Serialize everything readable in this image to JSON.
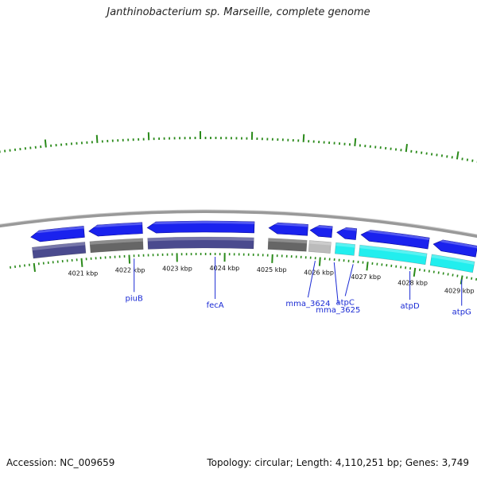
{
  "title": "Janthinobacterium sp. Marseille, complete genome",
  "footer": {
    "accession": "Accession: NC_009659",
    "stats": "Topology: circular; Length: 4,110,251 bp; Genes: 3,749"
  },
  "colors": {
    "backbone": "#999999",
    "outer_cds": "#1a22ee",
    "inner_cds": "#4a4a8e",
    "inner_gray": "#666666",
    "inner_lightgray": "#bbbbbb",
    "inner_cyan": "#22eeee",
    "tick": "#2a8a1a",
    "label": "#1a2ad4"
  },
  "scale": {
    "unit": "kbp",
    "labeled_ticks_kbp": [
      4021,
      4022,
      4023,
      4024,
      4025,
      4026,
      4027,
      4028,
      4029
    ]
  },
  "genes": [
    {
      "name": "piuB",
      "anchor_kbp": 4022.1
    },
    {
      "name": "fecA",
      "anchor_kbp": 4023.8
    },
    {
      "name": "mma_3624",
      "anchor_kbp": 4025.9
    },
    {
      "name": "mma_3625",
      "anchor_kbp": 4026.3
    },
    {
      "name": "atpC",
      "anchor_kbp": 4026.7
    },
    {
      "name": "atpD",
      "anchor_kbp": 4027.9
    },
    {
      "name": "atpG",
      "anchor_kbp": 4029.0
    }
  ],
  "features": {
    "outer": [
      {
        "start": 4020.0,
        "end": 4021.1,
        "strand": "-"
      },
      {
        "start": 4021.2,
        "end": 4022.3,
        "strand": "-"
      },
      {
        "start": 4022.4,
        "end": 4024.6,
        "strand": "-"
      },
      {
        "start": 4024.9,
        "end": 4025.7,
        "strand": "-"
      },
      {
        "start": 4025.75,
        "end": 4026.2,
        "strand": "-"
      },
      {
        "start": 4026.3,
        "end": 4026.7,
        "strand": "-"
      },
      {
        "start": 4026.8,
        "end": 4028.2,
        "strand": "-"
      },
      {
        "start": 4028.3,
        "end": 4029.2,
        "strand": "-"
      },
      {
        "start": 4029.3,
        "end": 4029.8,
        "strand": "-"
      }
    ],
    "inner": [
      {
        "start": 4020.0,
        "end": 4021.1,
        "color": "inner_cds"
      },
      {
        "start": 4021.2,
        "end": 4022.3,
        "color": "inner_gray"
      },
      {
        "start": 4022.4,
        "end": 4024.6,
        "color": "inner_cds"
      },
      {
        "start": 4024.9,
        "end": 4025.7,
        "color": "inner_gray"
      },
      {
        "start": 4025.75,
        "end": 4026.2,
        "color": "inner_lightgray"
      },
      {
        "start": 4026.3,
        "end": 4026.7,
        "color": "inner_cyan"
      },
      {
        "start": 4026.8,
        "end": 4028.2,
        "color": "inner_cyan"
      },
      {
        "start": 4028.3,
        "end": 4029.2,
        "color": "inner_cyan"
      },
      {
        "start": 4029.3,
        "end": 4029.8,
        "color": "inner_cyan"
      }
    ]
  }
}
